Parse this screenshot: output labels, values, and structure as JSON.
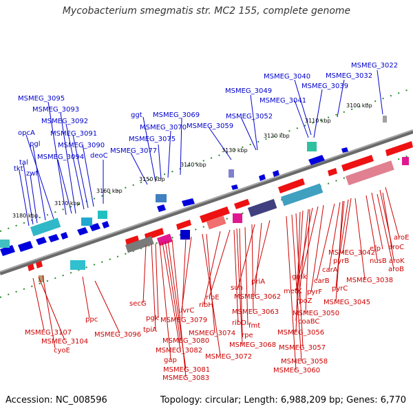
{
  "title": "Mycobacterium smegmatis str. MC2 155, complete genome",
  "footer": {
    "accession": "Accession: NC_008596",
    "summary": "Topology: circular; Length: 6,988,209 bp; Genes: 6,770"
  },
  "kbp_ticks": [
    "3100 kbp",
    "3110 kbp",
    "3120 kbp",
    "3130 kbp",
    "3140 kbp",
    "3150 kbp",
    "3160 kbp",
    "3170 kbp",
    "3180 kbp"
  ],
  "forward_genes": [
    "MSMEG_3022",
    "MSMEG_3032",
    "MSMEG_3039",
    "MSMEG_3040",
    "MSMEG_3041",
    "MSMEG_3049",
    "MSMEG_3052",
    "MSMEG_3059",
    "MSMEG_3069",
    "MSMEG_3070",
    "ggt",
    "MSMEG_3075",
    "MSMEG_3077",
    "deoC",
    "MSMEG_3090",
    "MSMEG_3091",
    "MSMEG_3092",
    "MSMEG_3093",
    "MSMEG_3094",
    "MSMEG_3095",
    "opcA",
    "pgl",
    "zwf",
    "tal",
    "tkt"
  ],
  "reverse_genes": [
    "aroE",
    "aroC",
    "efp",
    "nusB",
    "aroK",
    "aroB",
    "MSMEG_3042",
    "pyrB",
    "MSMEG_3038",
    "carA",
    "carB",
    "pyrC",
    "MSMEG_3045",
    "gmk",
    "pyrF",
    "metK",
    "rpoZ",
    "MSMEG_3050",
    "coaBC",
    "MSMEG_3056",
    "MSMEG_3057",
    "MSMEG_3058",
    "MSMEG_3060",
    "priA",
    "MSMEG_3062",
    "sun",
    "MSMEG_3063",
    "fmt",
    "ribE",
    "ribH",
    "ribD",
    "rpe",
    "MSMEG_3068",
    "MSMEG_3074",
    "MSMEG_3072",
    "uvrC",
    "MSMEG_3079",
    "secG",
    "pgk",
    "tpiA",
    "MSMEG_3080",
    "MSMEG_3082",
    "gap",
    "MSMEG_3081",
    "MSMEG_3083",
    "ppc",
    "MSMEG_3096",
    "MSMEG_3107",
    "MSMEG_3104",
    "cyoE"
  ],
  "colors": {
    "forward": "#0000cc",
    "reverse": "#cc0000",
    "backbone": "#808080",
    "ticks": "#228b22"
  }
}
